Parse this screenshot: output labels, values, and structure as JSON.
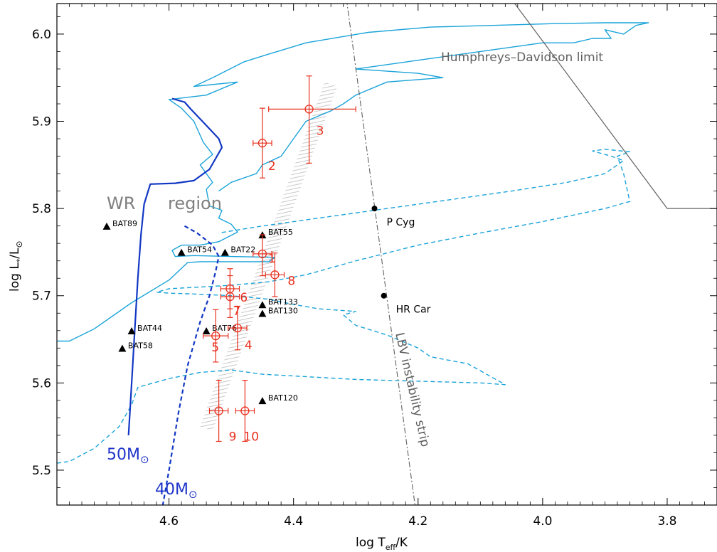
{
  "chart_data": {
    "type": "scatter",
    "title": "",
    "x_axis": {
      "label_main": "log T",
      "label_sub": "eff",
      "label_tail": "/K",
      "range": [
        4.78,
        3.72
      ],
      "reversed": true,
      "ticks": [
        4.6,
        4.4,
        4.2,
        4.0,
        3.8
      ],
      "tick_labels": [
        "4.6",
        "4.4",
        "4.2",
        "4.0",
        "3.8"
      ]
    },
    "y_axis": {
      "label_main": "log L",
      "label_sub": "*",
      "label_tail": "/L",
      "label_sun": "⊙",
      "range": [
        5.46,
        6.035
      ],
      "ticks": [
        5.5,
        5.6,
        5.7,
        5.8,
        5.9,
        6.0
      ],
      "tick_labels": [
        "5.5",
        "5.6",
        "5.7",
        "5.8",
        "5.9",
        "6.0"
      ]
    },
    "grid": false,
    "measured_stars": [
      {
        "label": "1",
        "logT": 4.45,
        "logL": 5.748,
        "xerr": [
          0.015,
          0.015
        ],
        "yerr": [
          0.025,
          0.022
        ],
        "color": "#e8301e"
      },
      {
        "label": "2",
        "logT": 4.45,
        "logL": 5.875,
        "xerr": [
          0.015,
          0.015
        ],
        "yerr": [
          0.04,
          0.04
        ],
        "color": "#e8301e"
      },
      {
        "label": "3",
        "logT": 4.375,
        "logL": 5.914,
        "xerr": [
          0.065,
          0.075
        ],
        "yerr": [
          0.062,
          0.038
        ],
        "color": "#e8301e"
      },
      {
        "label": "4",
        "logT": 4.49,
        "logL": 5.663,
        "xerr": [
          0.015,
          0.015
        ],
        "yerr": [
          0.025,
          0.025
        ],
        "color": "#e8301e"
      },
      {
        "label": "5",
        "logT": 4.525,
        "logL": 5.654,
        "xerr": [
          0.02,
          0.02
        ],
        "yerr": [
          0.03,
          0.03
        ],
        "color": "#e8301e"
      },
      {
        "label": "6",
        "logT": 4.502,
        "logL": 5.708,
        "xerr": [
          0.015,
          0.015
        ],
        "yerr": [
          0.023,
          0.023
        ],
        "color": "#e8301e"
      },
      {
        "label": "7",
        "logT": 4.502,
        "logL": 5.699,
        "xerr": [
          0.015,
          0.015
        ],
        "yerr": [
          0.024,
          0.024
        ],
        "color": "#e8301e"
      },
      {
        "label": "8",
        "logT": 4.43,
        "logL": 5.724,
        "xerr": [
          0.015,
          0.015
        ],
        "yerr": [
          0.025,
          0.025
        ],
        "color": "#e8301e"
      },
      {
        "label": "9",
        "logT": 4.52,
        "logL": 5.568,
        "xerr": [
          0.015,
          0.015
        ],
        "yerr": [
          0.035,
          0.035
        ],
        "color": "#e8301e"
      },
      {
        "label": "10",
        "logT": 4.478,
        "logL": 5.568,
        "xerr": [
          0.015,
          0.015
        ],
        "yerr": [
          0.035,
          0.035
        ],
        "color": "#e8301e"
      }
    ],
    "comparison_stars": [
      {
        "label": "BAT89",
        "logT": 4.7,
        "logL": 5.779
      },
      {
        "label": "BAT54",
        "logT": 4.58,
        "logL": 5.749
      },
      {
        "label": "BAT22",
        "logT": 4.51,
        "logL": 5.749
      },
      {
        "label": "BAT55",
        "logT": 4.45,
        "logL": 5.769
      },
      {
        "label": "BAT133",
        "logT": 4.45,
        "logL": 5.689
      },
      {
        "label": "BAT130",
        "logT": 4.45,
        "logL": 5.679
      },
      {
        "label": "BAT76",
        "logT": 4.54,
        "logL": 5.659
      },
      {
        "label": "BAT44",
        "logT": 4.66,
        "logL": 5.659
      },
      {
        "label": "BAT58",
        "logT": 4.675,
        "logL": 5.639
      },
      {
        "label": "BAT120",
        "logT": 4.45,
        "logL": 5.579
      }
    ],
    "lbv_stars": [
      {
        "label": "P Cyg",
        "logT": 4.27,
        "logL": 5.8
      },
      {
        "label": "HR Car",
        "logT": 4.255,
        "logL": 5.7
      }
    ],
    "hd_limit": {
      "label": "Humphreys–Davidson limit",
      "points": [
        [
          4.05,
          6.04
        ],
        [
          3.8,
          5.8
        ],
        [
          3.72,
          5.8
        ]
      ],
      "color": "#606060"
    },
    "lbv_strip": {
      "label": "LBV instability strip",
      "points": [
        [
          4.315,
          6.04
        ],
        [
          4.205,
          5.46
        ]
      ],
      "color": "#606060"
    },
    "wr_labels": {
      "wr": "WR",
      "region": "region"
    },
    "mass_labels": {
      "m50": "50M",
      "m40": "40M",
      "sun": "⊙",
      "color": "#1f35c9"
    },
    "tracks": [
      {
        "name": "",
        "style": "solid",
        "color": "#1aa3d9",
        "points": [
          [
            4.78,
            5.648
          ],
          [
            4.76,
            5.648
          ],
          [
            4.72,
            5.662
          ],
          [
            4.66,
            5.692
          ],
          [
            4.6,
            5.718
          ],
          [
            4.57,
            5.738
          ],
          [
            4.55,
            5.739
          ],
          [
            4.5,
            5.739
          ],
          [
            4.44,
            5.739
          ],
          [
            4.43,
            5.744
          ],
          [
            4.5,
            5.745
          ],
          [
            4.56,
            5.746
          ],
          [
            4.59,
            5.745
          ],
          [
            4.595,
            5.752
          ],
          [
            4.58,
            5.758
          ],
          [
            4.55,
            5.758
          ],
          [
            4.52,
            5.762
          ],
          [
            4.49,
            5.773
          ],
          [
            4.5,
            5.782
          ],
          [
            4.52,
            5.789
          ],
          [
            4.515,
            5.798
          ],
          [
            4.535,
            5.803
          ],
          [
            4.54,
            5.822
          ],
          [
            4.53,
            5.83
          ],
          [
            4.55,
            5.85
          ],
          [
            4.53,
            5.862
          ],
          [
            4.545,
            5.876
          ],
          [
            4.56,
            5.9
          ],
          [
            4.58,
            5.915
          ],
          [
            4.6,
            5.925
          ],
          [
            4.54,
            5.93
          ],
          [
            4.49,
            5.945
          ],
          [
            4.56,
            5.94
          ],
          [
            4.53,
            5.95
          ],
          [
            4.48,
            5.968
          ],
          [
            4.44,
            5.977
          ],
          [
            4.38,
            5.99
          ],
          [
            4.28,
            6.002
          ],
          [
            4.18,
            6.008
          ],
          [
            4.08,
            6.01
          ],
          [
            3.98,
            6.012
          ],
          [
            3.9,
            6.013
          ],
          [
            3.83,
            6.013
          ],
          [
            3.85,
            6.01
          ],
          [
            3.87,
            6.0
          ],
          [
            3.9,
            6.005
          ],
          [
            3.89,
            5.995
          ],
          [
            3.92,
            5.995
          ],
          [
            3.95,
            5.99
          ],
          [
            4.0,
            5.99
          ],
          [
            4.1,
            5.98
          ],
          [
            4.2,
            5.97
          ],
          [
            4.3,
            5.96
          ],
          [
            4.2,
            5.955
          ],
          [
            4.16,
            5.95
          ],
          [
            4.25,
            5.945
          ],
          [
            4.3,
            5.93
          ],
          [
            4.32,
            5.92
          ],
          [
            4.34,
            5.912
          ],
          [
            4.38,
            5.9
          ],
          [
            4.42,
            5.86
          ],
          [
            4.45,
            5.85
          ],
          [
            4.46,
            5.84
          ],
          [
            4.5,
            5.83
          ],
          [
            4.52,
            5.82
          ]
        ]
      },
      {
        "name": "",
        "style": "dashed",
        "color": "#1aa3d9",
        "points": [
          [
            4.78,
            5.508
          ],
          [
            4.76,
            5.51
          ],
          [
            4.72,
            5.525
          ],
          [
            4.68,
            5.55
          ],
          [
            4.66,
            5.575
          ],
          [
            4.65,
            5.595
          ],
          [
            4.6,
            5.605
          ],
          [
            4.55,
            5.612
          ],
          [
            4.5,
            5.615
          ],
          [
            4.45,
            5.61
          ],
          [
            4.4,
            5.608
          ],
          [
            4.35,
            5.606
          ],
          [
            4.3,
            5.604
          ],
          [
            4.2,
            5.602
          ],
          [
            4.1,
            5.6
          ],
          [
            4.06,
            5.598
          ],
          [
            4.12,
            5.622
          ],
          [
            4.18,
            5.63
          ],
          [
            4.2,
            5.64
          ],
          [
            4.25,
            5.655
          ],
          [
            4.3,
            5.666
          ],
          [
            4.32,
            5.678
          ],
          [
            4.3,
            5.682
          ],
          [
            4.36,
            5.685
          ],
          [
            4.4,
            5.69
          ],
          [
            4.44,
            5.696
          ],
          [
            4.5,
            5.7
          ],
          [
            4.56,
            5.702
          ],
          [
            4.6,
            5.703
          ],
          [
            4.62,
            5.704
          ],
          [
            4.6,
            5.708
          ],
          [
            4.55,
            5.71
          ],
          [
            4.5,
            5.712
          ],
          [
            4.44,
            5.716
          ],
          [
            4.38,
            5.724
          ],
          [
            4.3,
            5.74
          ],
          [
            4.2,
            5.758
          ],
          [
            4.1,
            5.772
          ],
          [
            4.0,
            5.785
          ],
          [
            3.9,
            5.8
          ],
          [
            3.86,
            5.808
          ],
          [
            3.87,
            5.84
          ],
          [
            3.88,
            5.86
          ],
          [
            3.86,
            5.865
          ],
          [
            3.9,
            5.868
          ],
          [
            3.92,
            5.866
          ],
          [
            3.89,
            5.86
          ],
          [
            3.87,
            5.855
          ],
          [
            3.9,
            5.84
          ],
          [
            3.96,
            5.83
          ],
          [
            4.05,
            5.82
          ],
          [
            4.15,
            5.81
          ],
          [
            4.3,
            5.795
          ],
          [
            4.45,
            5.78
          ],
          [
            4.52,
            5.772
          ]
        ]
      },
      {
        "name": "",
        "style": "solid",
        "color": "#1238c4",
        "points": [
          [
            4.595,
            5.926
          ],
          [
            4.575,
            5.922
          ],
          [
            4.565,
            5.914
          ],
          [
            4.545,
            5.899
          ],
          [
            4.52,
            5.88
          ],
          [
            4.515,
            5.87
          ],
          [
            4.535,
            5.845
          ],
          [
            4.56,
            5.832
          ],
          [
            4.59,
            5.829
          ],
          [
            4.63,
            5.828
          ],
          [
            4.64,
            5.805
          ],
          [
            4.645,
            5.77
          ],
          [
            4.65,
            5.72
          ],
          [
            4.655,
            5.66
          ],
          [
            4.66,
            5.6
          ],
          [
            4.665,
            5.54
          ]
        ]
      },
      {
        "name": "",
        "style": "dashed",
        "color": "#1238c4",
        "points": [
          [
            4.575,
            5.78
          ],
          [
            4.555,
            5.772
          ],
          [
            4.53,
            5.758
          ],
          [
            4.52,
            5.745
          ],
          [
            4.525,
            5.728
          ],
          [
            4.535,
            5.7
          ],
          [
            4.55,
            5.67
          ],
          [
            4.57,
            5.62
          ],
          [
            4.585,
            5.565
          ],
          [
            4.6,
            5.5
          ],
          [
            4.615,
            5.44
          ]
        ]
      }
    ]
  }
}
